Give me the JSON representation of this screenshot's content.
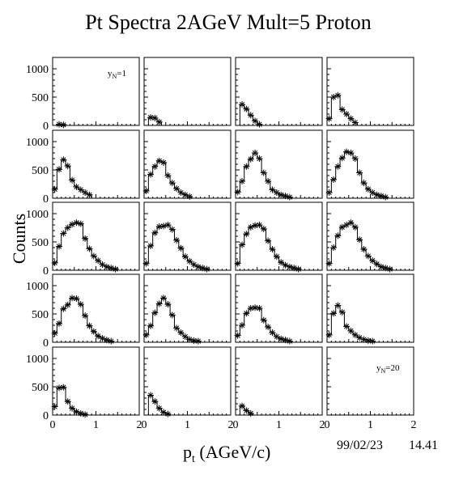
{
  "chart_data": {
    "type": "scatter",
    "title": "Pt Spectra 2AGeV Mult=5 Proton",
    "xlabel": "p",
    "xlabel_sub": "t",
    "xlabel_unit": " (AGeV/c)",
    "ylabel": "Counts",
    "date": "99/02/23",
    "time": "14.41",
    "xlim": [
      0,
      2
    ],
    "ylim": [
      0,
      1200
    ],
    "x_ticks": [
      0,
      1,
      2
    ],
    "y_ticks": [
      0,
      500,
      1000
    ],
    "grid": false,
    "rows": 5,
    "cols": 4,
    "x": [
      0.05,
      0.15,
      0.25,
      0.35,
      0.45,
      0.55,
      0.65,
      0.75,
      0.85,
      0.95,
      1.05,
      1.15,
      1.25,
      1.35,
      1.45,
      1.55,
      1.65,
      1.75,
      1.85,
      1.95
    ],
    "panels": [
      {
        "label_main": "y",
        "label_sub": "N",
        "label_rest": "=1",
        "values": [
          0,
          20,
          10,
          0,
          0,
          0,
          0,
          0,
          0,
          0,
          0,
          0,
          0,
          0,
          0,
          0,
          0,
          0,
          0,
          0
        ]
      },
      {
        "values": [
          0,
          140,
          130,
          60,
          0,
          0,
          0,
          0,
          0,
          0,
          0,
          0,
          0,
          0,
          0,
          0,
          0,
          0,
          0,
          0
        ]
      },
      {
        "values": [
          0,
          370,
          290,
          180,
          80,
          20,
          0,
          0,
          0,
          0,
          0,
          0,
          0,
          0,
          0,
          0,
          0,
          0,
          0,
          0
        ]
      },
      {
        "values": [
          120,
          500,
          530,
          280,
          200,
          120,
          50,
          0,
          0,
          0,
          0,
          0,
          0,
          0,
          0,
          0,
          0,
          0,
          0,
          0
        ]
      },
      {
        "values": [
          160,
          510,
          680,
          570,
          320,
          200,
          150,
          100,
          60,
          0,
          0,
          0,
          0,
          0,
          0,
          0,
          0,
          0,
          0,
          0
        ]
      },
      {
        "values": [
          130,
          420,
          560,
          660,
          630,
          400,
          270,
          170,
          100,
          60,
          30,
          0,
          0,
          0,
          0,
          0,
          0,
          0,
          0,
          0
        ]
      },
      {
        "values": [
          110,
          300,
          560,
          690,
          800,
          700,
          450,
          300,
          150,
          100,
          60,
          40,
          20,
          0,
          0,
          0,
          0,
          0,
          0,
          0
        ]
      },
      {
        "values": [
          100,
          330,
          560,
          710,
          820,
          800,
          700,
          450,
          270,
          160,
          100,
          60,
          40,
          20,
          0,
          0,
          0,
          0,
          0,
          0
        ]
      },
      {
        "values": [
          130,
          420,
          650,
          750,
          810,
          840,
          820,
          560,
          380,
          250,
          170,
          100,
          60,
          40,
          20,
          0,
          0,
          0,
          0,
          0
        ]
      },
      {
        "values": [
          120,
          430,
          660,
          770,
          780,
          800,
          720,
          530,
          390,
          240,
          160,
          100,
          60,
          40,
          20,
          0,
          0,
          0,
          0,
          0
        ]
      },
      {
        "values": [
          120,
          450,
          640,
          760,
          790,
          800,
          730,
          520,
          370,
          240,
          140,
          90,
          60,
          40,
          20,
          0,
          0,
          0,
          0,
          0
        ]
      },
      {
        "values": [
          120,
          400,
          610,
          760,
          800,
          840,
          760,
          540,
          370,
          250,
          170,
          110,
          60,
          40,
          20,
          0,
          0,
          0,
          0,
          0
        ]
      },
      {
        "values": [
          160,
          330,
          590,
          660,
          780,
          770,
          670,
          470,
          290,
          190,
          110,
          70,
          40,
          20,
          0,
          0,
          0,
          0,
          0,
          0
        ]
      },
      {
        "values": [
          130,
          290,
          520,
          680,
          780,
          670,
          480,
          250,
          170,
          100,
          50,
          30,
          20,
          0,
          0,
          0,
          0,
          0,
          0,
          0
        ]
      },
      {
        "values": [
          120,
          300,
          510,
          600,
          610,
          600,
          390,
          270,
          170,
          100,
          60,
          40,
          20,
          0,
          0,
          0,
          0,
          0,
          0,
          0
        ]
      },
      {
        "values": [
          130,
          510,
          650,
          530,
          280,
          200,
          130,
          80,
          50,
          30,
          20,
          0,
          0,
          0,
          0,
          0,
          0,
          0,
          0,
          0
        ]
      },
      {
        "values": [
          150,
          480,
          490,
          240,
          120,
          60,
          30,
          10,
          0,
          0,
          0,
          0,
          0,
          0,
          0,
          0,
          0,
          0,
          0,
          0
        ]
      },
      {
        "values": [
          0,
          350,
          240,
          120,
          50,
          20,
          0,
          0,
          0,
          0,
          0,
          0,
          0,
          0,
          0,
          0,
          0,
          0,
          0,
          0
        ]
      },
      {
        "values": [
          0,
          160,
          80,
          30,
          0,
          0,
          0,
          0,
          0,
          0,
          0,
          0,
          0,
          0,
          0,
          0,
          0,
          0,
          0,
          0
        ]
      },
      {
        "label_main": "y",
        "label_sub": "N",
        "label_rest": "=20",
        "values": [
          0,
          0,
          0,
          0,
          0,
          0,
          0,
          0,
          0,
          0,
          0,
          0,
          0,
          0,
          0,
          0,
          0,
          0,
          0,
          0
        ]
      }
    ]
  }
}
